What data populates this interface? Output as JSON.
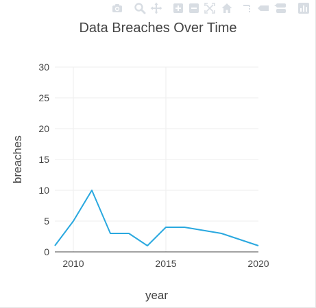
{
  "icons": {
    "modebar": [
      "camera-icon",
      "zoom-icon",
      "pan-icon",
      "zoom-in-icon",
      "zoom-out-icon",
      "autoscale-icon",
      "home-icon",
      "spike-lines-icon",
      "hover-closest-icon",
      "hover-compare-icon",
      "plotly-logo-icon"
    ]
  },
  "colors": {
    "line": "#29a8df",
    "grid": "#eeeeee",
    "text": "#444444",
    "modebar_icon": "#d8dde3"
  },
  "chart_data": {
    "type": "line",
    "title": "Data Breaches Over Time",
    "xlabel": "year",
    "ylabel": "breaches",
    "xlim": [
      2009,
      2020
    ],
    "ylim": [
      0,
      30
    ],
    "x_ticks": [
      "2010",
      "2015",
      "2020"
    ],
    "y_ticks": [
      "0",
      "5",
      "10",
      "15",
      "20",
      "25",
      "30"
    ],
    "x": [
      2009,
      2010,
      2011,
      2012,
      2013,
      2014,
      2015,
      2016,
      2017,
      2018,
      2019,
      2020
    ],
    "values": [
      1,
      5,
      10,
      3,
      3,
      1,
      4,
      4,
      3.5,
      3,
      2,
      1
    ],
    "grid": true,
    "legend": "none"
  }
}
